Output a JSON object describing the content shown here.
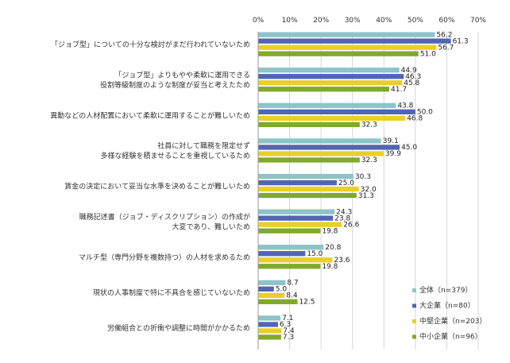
{
  "chart_data": {
    "type": "bar",
    "orientation": "horizontal",
    "xlim": [
      0,
      70
    ],
    "ticks": [
      "0%",
      "10%",
      "20%",
      "30%",
      "40%",
      "50%",
      "60%",
      "70%"
    ],
    "tick_values": [
      0,
      10,
      20,
      30,
      40,
      50,
      60,
      70
    ],
    "grid": true,
    "legend_position": "bottom-right",
    "categories": [
      [
        "「ジョブ型」についての十分な検討がまだ行われていないため"
      ],
      [
        "「ジョブ型」よりもやや柔軟に運用できる",
        "役割等級制度のような制度が妥当と考えたため"
      ],
      [
        "異動などの人材配置において柔軟に運用することが難しいため"
      ],
      [
        "社員に対して職務を限定せず",
        "多様な経験を積ませることを重視しているため"
      ],
      [
        "賃金の決定において妥当な水準を決めることが難しいため"
      ],
      [
        "職務記述書（ジョブ・ディスクリプション）の作成が",
        "大変であり、難しいため"
      ],
      [
        "マルチ型（専門分野を複数持つ）の人材を求めるため"
      ],
      [
        "現状の人事制度で特に不具合を感じていないため"
      ],
      [
        "労働組合との折衝や調整に時間がかかるため"
      ]
    ],
    "series": [
      {
        "name": "全体（n=379）",
        "color": "#8ec3c8",
        "values": [
          56.2,
          44.9,
          43.8,
          39.1,
          30.3,
          24.3,
          20.8,
          8.7,
          7.1
        ]
      },
      {
        "name": "大企業（n=80）",
        "color": "#5264b4",
        "values": [
          61.3,
          46.3,
          50.0,
          45.0,
          25.0,
          23.8,
          15.0,
          5.0,
          6.3
        ]
      },
      {
        "name": "中堅企業（n=203）",
        "color": "#e8cf2a",
        "values": [
          56.7,
          45.8,
          46.8,
          39.9,
          32.0,
          26.6,
          23.6,
          8.4,
          7.4
        ]
      },
      {
        "name": "中小企業（n=96）",
        "color": "#80aa2a",
        "values": [
          51.0,
          41.7,
          32.3,
          32.3,
          31.3,
          19.8,
          19.8,
          12.5,
          7.3
        ]
      }
    ]
  }
}
